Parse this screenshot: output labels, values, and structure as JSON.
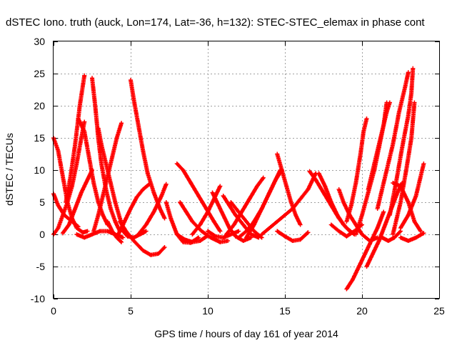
{
  "chart_data": {
    "type": "scatter",
    "title": "dSTEC Iono. truth (auck, Lon=174, Lat=-36, h=132): STEC-STEC_elemax in phase cont",
    "xlabel": "GPS time / hours of day 161 of year 2014",
    "ylabel": "dSTEC  / TECUs",
    "xlim": [
      0,
      25
    ],
    "ylim": [
      -10,
      30
    ],
    "x_ticks": [
      0,
      5,
      10,
      15,
      20,
      25
    ],
    "y_ticks": [
      -10,
      -5,
      0,
      5,
      10,
      15,
      20,
      25,
      30
    ],
    "grid": true,
    "marker": "plus",
    "color": "#ff0000",
    "series": [
      {
        "points": [
          [
            0.0,
            15.0
          ],
          [
            0.3,
            13.0
          ],
          [
            0.6,
            9.0
          ],
          [
            0.9,
            5.0
          ],
          [
            1.2,
            2.5
          ],
          [
            1.5,
            1.0
          ],
          [
            1.9,
            0.3
          ],
          [
            2.2,
            0.5
          ]
        ]
      },
      {
        "points": [
          [
            0.0,
            6.3
          ],
          [
            0.3,
            4.5
          ],
          [
            0.7,
            3.0
          ],
          [
            1.2,
            2.0
          ],
          [
            1.6,
            1.2
          ]
        ]
      },
      {
        "points": [
          [
            0.0,
            0.0
          ],
          [
            0.3,
            1.0
          ],
          [
            0.6,
            3.0
          ],
          [
            0.9,
            5.0
          ],
          [
            1.2,
            7.5
          ],
          [
            1.5,
            11.0
          ],
          [
            1.8,
            15.0
          ],
          [
            2.0,
            17.5
          ]
        ]
      },
      {
        "points": [
          [
            0.8,
            5.0
          ],
          [
            1.1,
            9.0
          ],
          [
            1.4,
            14.0
          ],
          [
            1.7,
            20.0
          ],
          [
            2.0,
            24.7
          ]
        ]
      },
      {
        "points": [
          [
            0.6,
            0.2
          ],
          [
            1.0,
            1.5
          ],
          [
            1.4,
            4.0
          ],
          [
            1.8,
            6.5
          ],
          [
            2.2,
            8.5
          ],
          [
            2.5,
            10.0
          ]
        ]
      },
      {
        "points": [
          [
            1.6,
            18.0
          ],
          [
            2.0,
            16.0
          ],
          [
            2.3,
            12.0
          ],
          [
            2.6,
            8.0
          ],
          [
            2.9,
            5.0
          ],
          [
            3.2,
            3.0
          ],
          [
            3.5,
            1.5
          ]
        ]
      },
      {
        "points": [
          [
            2.5,
            24.3
          ],
          [
            2.7,
            20.0
          ],
          [
            2.9,
            15.0
          ],
          [
            3.1,
            11.0
          ],
          [
            3.4,
            7.0
          ],
          [
            3.7,
            4.0
          ],
          [
            4.0,
            2.0
          ],
          [
            4.3,
            0.5
          ]
        ]
      },
      {
        "points": [
          [
            1.5,
            0.0
          ],
          [
            2.0,
            -0.5
          ],
          [
            2.5,
            0.0
          ],
          [
            3.0,
            0.5
          ],
          [
            3.5,
            0.5
          ],
          [
            4.0,
            0.0
          ],
          [
            4.5,
            -0.5
          ]
        ]
      },
      {
        "points": [
          [
            2.6,
            0.5
          ],
          [
            2.9,
            3.0
          ],
          [
            3.2,
            6.0
          ],
          [
            3.5,
            9.0
          ],
          [
            3.8,
            12.0
          ],
          [
            4.1,
            15.0
          ],
          [
            4.4,
            17.3
          ]
        ]
      },
      {
        "points": [
          [
            2.9,
            16.5
          ],
          [
            3.1,
            14.0
          ],
          [
            3.4,
            11.0
          ],
          [
            3.7,
            8.0
          ],
          [
            4.0,
            5.0
          ],
          [
            4.3,
            2.5
          ],
          [
            4.6,
            0.5
          ]
        ]
      },
      {
        "points": [
          [
            3.5,
            2.0
          ],
          [
            3.8,
            0.5
          ],
          [
            4.1,
            -0.5
          ],
          [
            4.4,
            -1.2
          ]
        ]
      },
      {
        "points": [
          [
            5.0,
            24.0
          ],
          [
            5.2,
            21.0
          ],
          [
            5.5,
            17.0
          ],
          [
            5.8,
            13.0
          ],
          [
            6.1,
            9.5
          ],
          [
            6.5,
            6.5
          ],
          [
            6.9,
            4.0
          ],
          [
            7.2,
            2.5
          ]
        ]
      },
      {
        "points": [
          [
            4.5,
            0.5
          ],
          [
            4.8,
            -0.3
          ],
          [
            5.2,
            -0.5
          ],
          [
            5.6,
            0.0
          ],
          [
            6.0,
            0.5
          ]
        ]
      },
      {
        "points": [
          [
            4.2,
            0.0
          ],
          [
            4.6,
            2.0
          ],
          [
            5.0,
            4.0
          ],
          [
            5.4,
            5.8
          ],
          [
            5.8,
            7.0
          ],
          [
            6.2,
            7.8
          ]
        ]
      },
      {
        "points": [
          [
            4.3,
            2.0
          ],
          [
            4.7,
            0.5
          ],
          [
            5.2,
            -1.0
          ],
          [
            5.8,
            -2.5
          ],
          [
            6.3,
            -3.2
          ],
          [
            6.8,
            -3.0
          ],
          [
            7.2,
            -2.0
          ]
        ]
      },
      {
        "points": [
          [
            5.5,
            0.0
          ],
          [
            6.0,
            1.5
          ],
          [
            6.5,
            3.5
          ],
          [
            7.0,
            6.0
          ],
          [
            7.3,
            7.8
          ]
        ]
      },
      {
        "points": [
          [
            7.3,
            5.0
          ],
          [
            7.6,
            2.5
          ],
          [
            8.0,
            0.0
          ],
          [
            8.4,
            -1.2
          ],
          [
            8.9,
            -1.3
          ],
          [
            9.4,
            -0.5
          ]
        ]
      },
      {
        "points": [
          [
            8.0,
            11.0
          ],
          [
            8.4,
            10.0
          ],
          [
            8.9,
            8.0
          ],
          [
            9.4,
            6.0
          ],
          [
            9.9,
            4.0
          ],
          [
            10.4,
            2.0
          ],
          [
            10.8,
            0.5
          ]
        ]
      },
      {
        "points": [
          [
            8.0,
            0.0
          ],
          [
            8.5,
            -0.8
          ],
          [
            9.0,
            -1.2
          ],
          [
            9.5,
            -1.0
          ],
          [
            10.0,
            -0.2
          ]
        ]
      },
      {
        "points": [
          [
            8.2,
            5.0
          ],
          [
            8.6,
            3.5
          ],
          [
            9.0,
            2.0
          ],
          [
            9.6,
            0.5
          ],
          [
            10.2,
            -0.5
          ],
          [
            10.8,
            -1.2
          ],
          [
            11.3,
            -1.0
          ]
        ]
      },
      {
        "points": [
          [
            9.0,
            0.0
          ],
          [
            9.5,
            1.5
          ],
          [
            10.0,
            3.5
          ],
          [
            10.5,
            6.0
          ],
          [
            10.8,
            7.5
          ]
        ]
      },
      {
        "points": [
          [
            10.0,
            0.5
          ],
          [
            10.5,
            -0.3
          ],
          [
            11.0,
            -0.5
          ],
          [
            11.5,
            0.0
          ],
          [
            12.0,
            0.5
          ]
        ]
      },
      {
        "points": [
          [
            10.3,
            6.5
          ],
          [
            10.6,
            5.0
          ],
          [
            11.0,
            3.0
          ],
          [
            11.4,
            1.0
          ],
          [
            11.8,
            -0.3
          ],
          [
            12.3,
            -1.0
          ],
          [
            12.8,
            -0.5
          ]
        ]
      },
      {
        "points": [
          [
            11.2,
            0.0
          ],
          [
            11.7,
            1.5
          ],
          [
            12.2,
            3.5
          ],
          [
            12.7,
            5.5
          ],
          [
            13.2,
            7.5
          ],
          [
            13.6,
            8.8
          ]
        ]
      },
      {
        "points": [
          [
            11.0,
            6.0
          ],
          [
            11.4,
            4.5
          ],
          [
            11.8,
            3.0
          ],
          [
            12.3,
            1.5
          ],
          [
            12.8,
            0.0
          ],
          [
            13.3,
            -0.5
          ]
        ]
      },
      {
        "points": [
          [
            11.5,
            5.0
          ],
          [
            12.0,
            3.5
          ],
          [
            12.5,
            2.0
          ],
          [
            13.0,
            0.5
          ],
          [
            13.5,
            -0.5
          ]
        ]
      },
      {
        "points": [
          [
            12.0,
            -0.5
          ],
          [
            12.5,
            0.5
          ],
          [
            13.0,
            2.0
          ],
          [
            13.5,
            4.0
          ],
          [
            14.0,
            6.5
          ],
          [
            14.4,
            8.5
          ],
          [
            14.8,
            10.0
          ]
        ]
      },
      {
        "points": [
          [
            12.5,
            -0.5
          ],
          [
            13.0,
            1.5
          ],
          [
            13.5,
            4.0
          ],
          [
            14.0,
            6.5
          ],
          [
            14.4,
            8.5
          ],
          [
            14.7,
            10.0
          ]
        ]
      },
      {
        "points": [
          [
            14.5,
            12.5
          ],
          [
            14.8,
            10.0
          ],
          [
            15.1,
            7.5
          ],
          [
            15.4,
            5.0
          ],
          [
            15.7,
            3.0
          ],
          [
            16.0,
            1.5
          ]
        ]
      },
      {
        "points": [
          [
            13.5,
            0.0
          ],
          [
            14.0,
            1.0
          ],
          [
            14.5,
            2.0
          ],
          [
            15.0,
            3.0
          ],
          [
            15.5,
            4.0
          ],
          [
            16.0,
            5.5
          ],
          [
            16.5,
            7.0
          ],
          [
            17.0,
            9.5
          ]
        ]
      },
      {
        "points": [
          [
            14.5,
            0.5
          ],
          [
            15.0,
            -0.3
          ],
          [
            15.5,
            -1.0
          ],
          [
            16.0,
            -0.8
          ],
          [
            16.5,
            0.3
          ]
        ]
      },
      {
        "points": [
          [
            16.6,
            9.8
          ],
          [
            17.0,
            8.5
          ],
          [
            17.5,
            6.5
          ],
          [
            18.0,
            4.5
          ],
          [
            18.5,
            2.5
          ],
          [
            19.0,
            1.0
          ],
          [
            19.5,
            0.0
          ]
        ]
      },
      {
        "points": [
          [
            17.2,
            9.5
          ],
          [
            17.6,
            7.5
          ],
          [
            18.0,
            5.0
          ],
          [
            18.4,
            3.0
          ],
          [
            18.8,
            1.5
          ],
          [
            19.2,
            0.5
          ]
        ]
      },
      {
        "points": [
          [
            18.0,
            1.5
          ],
          [
            18.5,
            0.5
          ],
          [
            19.0,
            -0.3
          ],
          [
            19.5,
            0.5
          ],
          [
            20.0,
            1.5
          ]
        ]
      },
      {
        "points": [
          [
            18.5,
            7.0
          ],
          [
            18.8,
            5.0
          ],
          [
            19.2,
            3.0
          ],
          [
            19.6,
            1.5
          ],
          [
            20.0,
            0.0
          ],
          [
            20.5,
            -1.0
          ],
          [
            21.0,
            -0.5
          ]
        ]
      },
      {
        "points": [
          [
            19.0,
            -8.5
          ],
          [
            19.4,
            -7.0
          ],
          [
            19.8,
            -5.0
          ],
          [
            20.2,
            -3.0
          ],
          [
            20.6,
            -1.0
          ],
          [
            21.0,
            1.0
          ],
          [
            21.4,
            3.5
          ]
        ]
      },
      {
        "points": [
          [
            20.3,
            -5.0
          ],
          [
            20.7,
            -3.0
          ],
          [
            21.1,
            -1.0
          ],
          [
            21.5,
            1.5
          ],
          [
            21.9,
            4.0
          ],
          [
            22.3,
            6.5
          ],
          [
            22.6,
            8.0
          ]
        ]
      },
      {
        "points": [
          [
            19.0,
            2.0
          ],
          [
            19.3,
            4.5
          ],
          [
            19.6,
            8.0
          ],
          [
            19.9,
            12.5
          ],
          [
            20.1,
            16.0
          ],
          [
            20.3,
            18.0
          ]
        ]
      },
      {
        "points": [
          [
            19.6,
            0.0
          ],
          [
            20.0,
            3.0
          ],
          [
            20.4,
            6.5
          ],
          [
            20.8,
            10.0
          ],
          [
            21.1,
            13.5
          ],
          [
            21.4,
            17.0
          ],
          [
            21.6,
            20.5
          ]
        ]
      },
      {
        "points": [
          [
            20.4,
            7.0
          ],
          [
            20.8,
            11.0
          ],
          [
            21.2,
            15.0
          ],
          [
            21.6,
            19.0
          ],
          [
            21.8,
            20.5
          ]
        ]
      },
      {
        "points": [
          [
            21.0,
            4.0
          ],
          [
            21.5,
            9.0
          ],
          [
            22.0,
            14.0
          ],
          [
            22.4,
            19.0
          ],
          [
            22.8,
            23.0
          ],
          [
            23.0,
            25.2
          ]
        ]
      },
      {
        "points": [
          [
            21.8,
            3.0
          ],
          [
            22.2,
            8.0
          ],
          [
            22.6,
            13.5
          ],
          [
            23.0,
            18.5
          ],
          [
            23.2,
            22.0
          ],
          [
            23.3,
            25.8
          ]
        ]
      },
      {
        "points": [
          [
            22.0,
            0.0
          ],
          [
            22.5,
            5.0
          ],
          [
            22.9,
            10.5
          ],
          [
            23.2,
            15.0
          ],
          [
            23.4,
            20.5
          ]
        ]
      },
      {
        "points": [
          [
            22.5,
            -0.5
          ],
          [
            23.0,
            -1.0
          ],
          [
            23.5,
            -0.5
          ],
          [
            24.0,
            0.2
          ]
        ]
      },
      {
        "points": [
          [
            22.0,
            8.0
          ],
          [
            22.5,
            7.5
          ],
          [
            23.0,
            5.0
          ],
          [
            23.4,
            2.0
          ],
          [
            23.8,
            0.5
          ]
        ]
      },
      {
        "points": [
          [
            22.5,
            1.0
          ],
          [
            23.0,
            3.0
          ],
          [
            23.5,
            6.0
          ],
          [
            24.0,
            11.0
          ]
        ]
      },
      {
        "points": [
          [
            21.3,
            -0.5
          ],
          [
            21.7,
            -1.0
          ],
          [
            22.1,
            -0.5
          ],
          [
            22.5,
            0.5
          ]
        ]
      }
    ]
  }
}
